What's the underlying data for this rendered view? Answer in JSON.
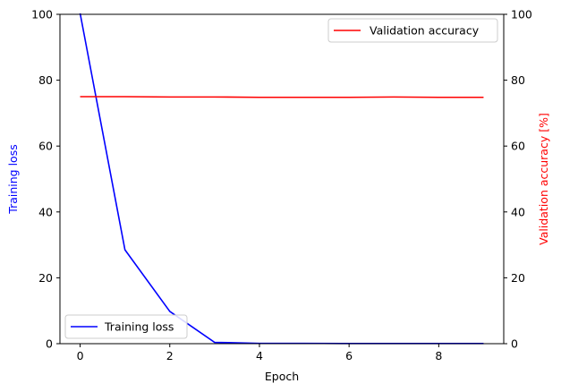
{
  "chart_data": {
    "type": "line",
    "x": [
      0,
      1,
      2,
      3,
      4,
      5,
      6,
      7,
      8,
      9
    ],
    "xlabel": "Epoch",
    "xlim": [
      -0.45,
      9.45
    ],
    "xticks": [
      0,
      2,
      4,
      6,
      8
    ],
    "y_left": {
      "label": "Training loss",
      "color": "#0000ff",
      "lim": [
        0,
        100
      ],
      "ticks": [
        0,
        20,
        40,
        60,
        80,
        100
      ]
    },
    "y_right": {
      "label": "Validation accuracy [%]",
      "color": "#ff0000",
      "lim": [
        0,
        100
      ],
      "ticks": [
        0,
        20,
        40,
        60,
        80,
        100
      ]
    },
    "series": [
      {
        "name": "Training loss",
        "axis": "left",
        "color": "#0000ff",
        "values": [
          100.3,
          28.5,
          9.8,
          0.4,
          0.1,
          0.1,
          0.05,
          0.05,
          0.05,
          0.05
        ]
      },
      {
        "name": "Validation accuracy",
        "axis": "right",
        "color": "#ff0000",
        "values": [
          75.0,
          75.0,
          74.9,
          74.9,
          74.8,
          74.8,
          74.8,
          74.9,
          74.8,
          74.8
        ]
      }
    ],
    "legends": [
      {
        "series": "Validation accuracy",
        "placement": "upper right"
      },
      {
        "series": "Training loss",
        "placement": "lower left"
      }
    ],
    "grid": false
  }
}
